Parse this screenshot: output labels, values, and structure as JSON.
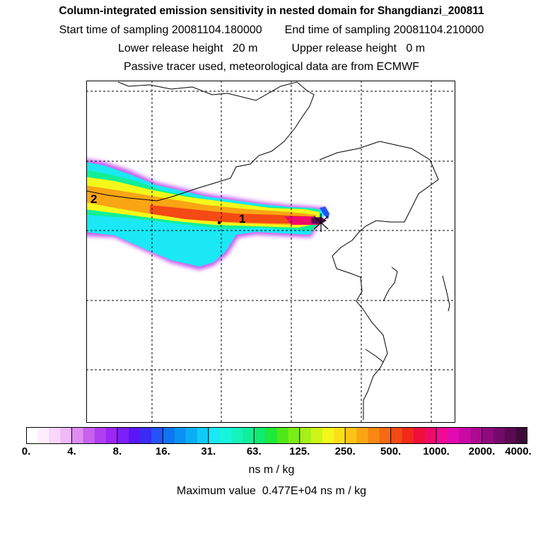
{
  "header": {
    "title": "Column-integrated emission sensitivity in nested domain for Shangdianzi_200811",
    "start_label": "Start time of sampling",
    "start_value": "20081104.180000",
    "end_label": "End time of sampling",
    "end_value": "20081104.210000",
    "lower_label": "Lower release height",
    "lower_value": "20 m",
    "upper_label": "Upper release height",
    "upper_value": "0 m",
    "note": "Passive tracer used, meteorological data are from ECMWF"
  },
  "map": {
    "markers": [
      {
        "label": "1",
        "kind": "trajectory-point"
      },
      {
        "label": "2",
        "kind": "trajectory-point"
      }
    ],
    "receptor": "Shangdianzi"
  },
  "colorbar": {
    "ticks": [
      "0.",
      "4.",
      "8.",
      "16.",
      "31.",
      "63.",
      "125.",
      "250.",
      "500.",
      "1000.",
      "2000.",
      "4000."
    ],
    "units": "ns m / kg",
    "colors": [
      "#ffffff",
      "#fdeefd",
      "#f8d7fb",
      "#f0b9f7",
      "#e08df1",
      "#c861ee",
      "#b03ef2",
      "#9c26f5",
      "#7e1ef8",
      "#5a16f8",
      "#3a2bf5",
      "#2254f8",
      "#1273f5",
      "#0b90f4",
      "#0aaef6",
      "#10cbf8",
      "#1ae8f5",
      "#18f5dd",
      "#16f2bd",
      "#12ee98",
      "#10ea6e",
      "#1ee83a",
      "#4ee818",
      "#7cee16",
      "#a5f016",
      "#cdf418",
      "#f3f81a",
      "#fbe018",
      "#fbc316",
      "#faa514",
      "#f98712",
      "#f66a12",
      "#f44a14",
      "#f22a1a",
      "#f00e3a",
      "#f00a6a",
      "#f00a95",
      "#e20ab0",
      "#c80aa2",
      "#ae0a92",
      "#920a80",
      "#760a6a",
      "#5a0a52",
      "#3e0a3a"
    ]
  },
  "maximum": {
    "label": "Maximum value",
    "value": "0.477E+04",
    "units": "ns m / kg"
  }
}
